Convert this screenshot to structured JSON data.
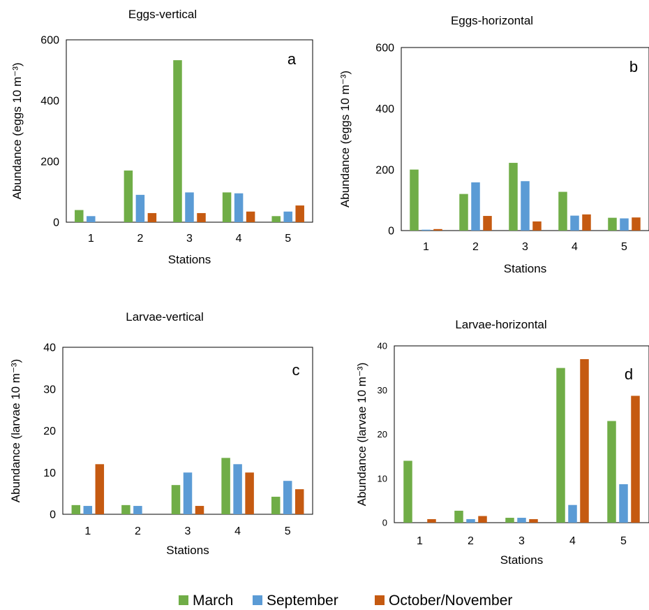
{
  "colors": {
    "March": "#70AD47",
    "September": "#5B9BD5",
    "October/November": "#C55A11"
  },
  "legend": {
    "entries": [
      {
        "label": "March",
        "color": "#70AD47"
      },
      {
        "label": "September",
        "color": "#5B9BD5"
      },
      {
        "label": "October/November",
        "color": "#C55A11"
      }
    ]
  },
  "chart_data": [
    {
      "type": "bar",
      "title": "Eggs-vertical",
      "panel_label": "a",
      "xlabel": "Stations",
      "ylabel": "Abundance (eggs 10 m⁻³)",
      "categories": [
        "1",
        "2",
        "3",
        "4",
        "5"
      ],
      "ylim": [
        0,
        600
      ],
      "yticks": [
        "0",
        "200",
        "400",
        "600"
      ],
      "grid": false,
      "series": [
        {
          "name": "March",
          "values": [
            40,
            170,
            533,
            98,
            20
          ]
        },
        {
          "name": "September",
          "values": [
            20,
            90,
            98,
            95,
            35
          ]
        },
        {
          "name": "October/November",
          "values": [
            0,
            30,
            30,
            35,
            55
          ]
        }
      ]
    },
    {
      "type": "bar",
      "title": "Eggs-horizontal",
      "panel_label": "b",
      "xlabel": "Stations",
      "ylabel": "Abundance (eggs 10 m⁻³)",
      "categories": [
        "1",
        "2",
        "3",
        "4",
        "5"
      ],
      "ylim": [
        0,
        600
      ],
      "yticks": [
        "0",
        "200",
        "400",
        "600"
      ],
      "grid": false,
      "series": [
        {
          "name": "March",
          "values": [
            200,
            120,
            222,
            127,
            42
          ]
        },
        {
          "name": "September",
          "values": [
            3,
            158,
            162,
            49,
            40
          ]
        },
        {
          "name": "October/November",
          "values": [
            5,
            48,
            30,
            53,
            43
          ]
        }
      ]
    },
    {
      "type": "bar",
      "title": "Larvae-vertical",
      "panel_label": "c",
      "xlabel": "Stations",
      "ylabel": "Abundance (larvae 10 m⁻³)",
      "categories": [
        "1",
        "2",
        "3",
        "4",
        "5"
      ],
      "ylim": [
        0,
        40
      ],
      "yticks": [
        "0",
        "10",
        "20",
        "30",
        "40"
      ],
      "grid": false,
      "series": [
        {
          "name": "March",
          "values": [
            2.2,
            2.2,
            7,
            13.5,
            4.2
          ]
        },
        {
          "name": "September",
          "values": [
            2,
            2,
            10,
            12,
            8
          ]
        },
        {
          "name": "October/November",
          "values": [
            12,
            0,
            2,
            10,
            6
          ]
        }
      ]
    },
    {
      "type": "bar",
      "title": "Larvae-horizontal",
      "panel_label": "d",
      "xlabel": "Stations",
      "ylabel": "Abundance (larvae 10 m⁻³)",
      "categories": [
        "1",
        "2",
        "3",
        "4",
        "5"
      ],
      "ylim": [
        0,
        40
      ],
      "yticks": [
        "0",
        "10",
        "20",
        "30",
        "40"
      ],
      "grid": false,
      "series": [
        {
          "name": "March",
          "values": [
            14,
            2.7,
            1.1,
            35,
            23
          ]
        },
        {
          "name": "September",
          "values": [
            0,
            0.8,
            1.1,
            4,
            8.7
          ]
        },
        {
          "name": "October/November",
          "values": [
            0.8,
            1.5,
            0.8,
            37,
            28.7
          ]
        }
      ]
    }
  ]
}
